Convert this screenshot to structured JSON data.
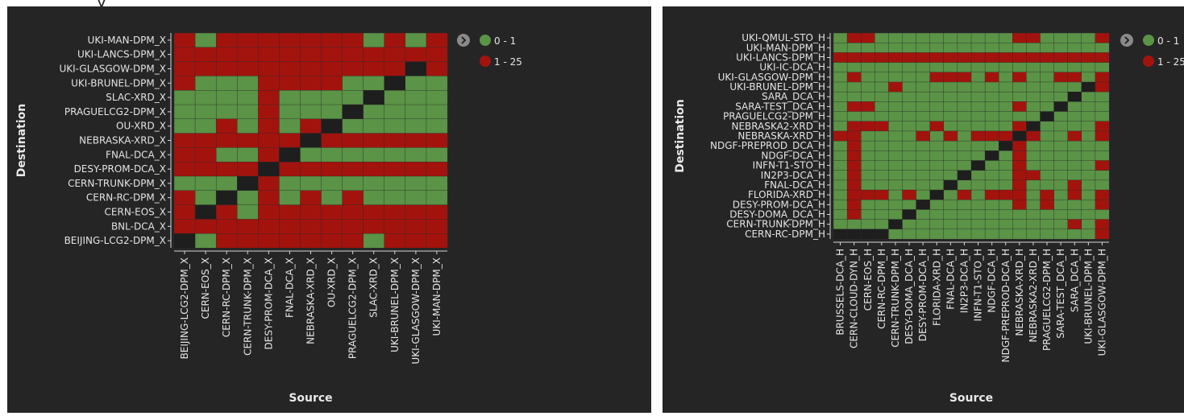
{
  "header_fragment": "y",
  "colors": {
    "panel_bg": "#252526",
    "low": "#5b9347",
    "high": "#a3130e",
    "diagonal": "#1e1e1e",
    "text": "#e3e3e3"
  },
  "chart_data": [
    {
      "type": "heatmap",
      "xlabel": "Source",
      "ylabel": "Destination",
      "legend": {
        "position": "top-right",
        "entries": [
          {
            "label": "0 - 1",
            "color": "#5b9347"
          },
          {
            "label": "1 - 25",
            "color": "#a3130e"
          }
        ]
      },
      "x_categories": [
        "BEIJING-LCG2-DPM_X",
        "CERN-EOS_X",
        "CERN-RC-DPM_X",
        "CERN-TRUNK-DPM_X",
        "DESY-PROM-DCA_X",
        "FNAL-DCA_X",
        "NEBRASKA-XRD_X",
        "OU-XRD_X",
        "PRAGUELCG2-DPM_X",
        "SLAC-XRD_X",
        "UKI-BRUNEL-DPM_X",
        "UKI-GLASGOW-DPM_X",
        "UKI-MAN-DPM_X"
      ],
      "y_categories": [
        "UKI-MAN-DPM_X",
        "UKI-LANCS-DPM_X",
        "UKI-GLASGOW-DPM_X",
        "UKI-BRUNEL-DPM_X",
        "SLAC-XRD_X",
        "PRAGUELCG2-DPM_X",
        "OU-XRD_X",
        "NEBRASKA-XRD_X",
        "FNAL-DCA_X",
        "DESY-PROM-DCA_X",
        "CERN-TRUNK-DPM_X",
        "CERN-RC-DPM_X",
        "CERN-EOS_X",
        "BNL-DCA_X",
        "BEIJING-LCG2-DPM_X"
      ],
      "cell_classes": [
        "1 = 0 - 1",
        "2 = 1 - 25",
        "0 = same site"
      ],
      "matrix": [
        [
          2,
          1,
          2,
          2,
          2,
          2,
          2,
          2,
          2,
          1,
          2,
          1,
          2
        ],
        [
          2,
          2,
          2,
          2,
          2,
          2,
          2,
          2,
          2,
          2,
          2,
          2,
          2
        ],
        [
          2,
          2,
          2,
          2,
          2,
          2,
          2,
          2,
          2,
          2,
          2,
          0,
          2
        ],
        [
          2,
          1,
          1,
          1,
          2,
          2,
          2,
          2,
          1,
          1,
          0,
          1,
          1
        ],
        [
          1,
          1,
          1,
          1,
          2,
          1,
          1,
          1,
          1,
          0,
          1,
          1,
          1
        ],
        [
          1,
          1,
          1,
          1,
          2,
          1,
          1,
          1,
          0,
          1,
          1,
          1,
          1
        ],
        [
          1,
          1,
          2,
          1,
          2,
          1,
          2,
          0,
          1,
          1,
          1,
          1,
          1
        ],
        [
          2,
          2,
          2,
          2,
          2,
          2,
          0,
          2,
          2,
          2,
          2,
          2,
          2
        ],
        [
          2,
          2,
          1,
          1,
          2,
          0,
          1,
          1,
          1,
          1,
          1,
          1,
          1
        ],
        [
          2,
          2,
          2,
          2,
          0,
          2,
          2,
          2,
          2,
          2,
          2,
          2,
          2
        ],
        [
          1,
          1,
          1,
          0,
          2,
          1,
          1,
          1,
          1,
          1,
          1,
          1,
          1
        ],
        [
          2,
          1,
          0,
          1,
          2,
          1,
          2,
          1,
          2,
          1,
          1,
          1,
          1
        ],
        [
          2,
          0,
          2,
          1,
          2,
          2,
          2,
          2,
          2,
          2,
          2,
          2,
          2
        ],
        [
          2,
          2,
          2,
          2,
          2,
          2,
          2,
          2,
          2,
          2,
          2,
          2,
          2
        ],
        [
          0,
          1,
          2,
          2,
          2,
          2,
          2,
          2,
          2,
          1,
          2,
          2,
          2
        ]
      ]
    },
    {
      "type": "heatmap",
      "xlabel": "Source",
      "ylabel": "Destination",
      "legend": {
        "position": "top-right",
        "entries": [
          {
            "label": "0 - 1",
            "color": "#5b9347"
          },
          {
            "label": "1 - 25",
            "color": "#a3130e"
          }
        ]
      },
      "x_categories": [
        "BRUSSELS-DCA_H",
        "CERN-CLOUD-DYN_H",
        "CERN-EOS_H",
        "CERN-RC-DPM_H",
        "CERN-TRUNK-DPM_H",
        "DESY-DOMA_DCA_H",
        "DESY-PROM-DCA_H",
        "FLORIDA-XRD_H",
        "FNAL-DCA_H",
        "IN2P3-DCA_H",
        "INFN-T1-STO_H",
        "NDGF-DCA_H",
        "NDGF-PREPROD-DCA_H",
        "NEBRASKA-XRD_H",
        "NEBRASKA2-XRD_H",
        "PRAGUELCG2-DPM_H",
        "SARA-TEST_DCA_H",
        "SARA_DCA_H",
        "UKI-BRUNEL-DPM_H",
        "UKI-GLASGOW-DPM_H"
      ],
      "y_categories": [
        "UKI-QMUL-STO_H",
        "UKI-MAN-DPM_H",
        "UKI-LANCS-DPM_H",
        "UKI-IC-DCA_H",
        "UKI-GLASGOW-DPM_H",
        "UKI-BRUNEL-DPM_H",
        "SARA_DCA_H",
        "SARA-TEST_DCA_H",
        "PRAGUELCG2-DPM_H",
        "NEBRASKA2-XRD_H",
        "NEBRASKA-XRD_H",
        "NDGF-PREPROD_DCA_H",
        "NDGF-DCA_H",
        "INFN-T1-STO_H",
        "IN2P3-DCA_H",
        "FNAL-DCA_H",
        "FLORIDA-XRD_H",
        "DESY-PROM-DCA_H",
        "DESY-DOMA_DCA_H",
        "CERN-TRUNK-DPM_H",
        "CERN-RC-DPM_H"
      ],
      "cell_classes": [
        "1 = 0 - 1",
        "2 = 1 - 25",
        "0 = same site"
      ],
      "matrix": [
        [
          1,
          2,
          2,
          1,
          1,
          1,
          1,
          1,
          1,
          1,
          1,
          1,
          1,
          2,
          2,
          1,
          1,
          1,
          1,
          2
        ],
        [
          1,
          1,
          1,
          1,
          1,
          1,
          1,
          1,
          1,
          1,
          1,
          1,
          1,
          1,
          1,
          1,
          1,
          1,
          1,
          1
        ],
        [
          2,
          2,
          2,
          2,
          2,
          2,
          2,
          2,
          2,
          2,
          2,
          2,
          2,
          2,
          2,
          2,
          2,
          2,
          2,
          2
        ],
        [
          1,
          1,
          1,
          1,
          1,
          1,
          1,
          1,
          1,
          1,
          1,
          1,
          1,
          1,
          1,
          1,
          1,
          1,
          1,
          1
        ],
        [
          1,
          2,
          1,
          1,
          1,
          1,
          1,
          2,
          2,
          2,
          1,
          2,
          1,
          2,
          1,
          1,
          2,
          2,
          1,
          2
        ],
        [
          1,
          1,
          1,
          1,
          2,
          1,
          1,
          1,
          1,
          1,
          1,
          1,
          1,
          1,
          1,
          1,
          1,
          1,
          0,
          2
        ],
        [
          1,
          1,
          1,
          1,
          1,
          1,
          1,
          1,
          1,
          1,
          1,
          1,
          1,
          1,
          1,
          1,
          1,
          0,
          1,
          1
        ],
        [
          1,
          2,
          2,
          1,
          1,
          1,
          1,
          1,
          1,
          1,
          1,
          1,
          1,
          2,
          1,
          1,
          0,
          1,
          1,
          1
        ],
        [
          1,
          1,
          1,
          1,
          1,
          1,
          1,
          1,
          1,
          1,
          1,
          1,
          1,
          1,
          1,
          0,
          1,
          1,
          1,
          1
        ],
        [
          1,
          2,
          2,
          2,
          1,
          1,
          1,
          2,
          1,
          1,
          1,
          1,
          1,
          2,
          0,
          1,
          1,
          1,
          1,
          2
        ],
        [
          2,
          2,
          1,
          1,
          1,
          1,
          2,
          1,
          2,
          1,
          2,
          2,
          2,
          0,
          2,
          1,
          1,
          2,
          1,
          2
        ],
        [
          1,
          2,
          1,
          1,
          1,
          1,
          1,
          1,
          1,
          1,
          1,
          1,
          0,
          2,
          1,
          1,
          1,
          1,
          1,
          1
        ],
        [
          1,
          2,
          1,
          1,
          1,
          1,
          1,
          1,
          1,
          1,
          1,
          0,
          1,
          2,
          1,
          1,
          1,
          1,
          1,
          1
        ],
        [
          1,
          2,
          1,
          1,
          1,
          1,
          1,
          1,
          1,
          1,
          0,
          1,
          1,
          2,
          1,
          1,
          1,
          1,
          1,
          2
        ],
        [
          1,
          2,
          1,
          1,
          1,
          1,
          1,
          1,
          1,
          0,
          1,
          1,
          1,
          2,
          2,
          1,
          1,
          1,
          1,
          1
        ],
        [
          1,
          2,
          1,
          1,
          1,
          1,
          1,
          1,
          0,
          1,
          1,
          1,
          1,
          2,
          1,
          1,
          1,
          2,
          1,
          1
        ],
        [
          1,
          2,
          2,
          2,
          1,
          2,
          1,
          0,
          1,
          2,
          1,
          2,
          2,
          2,
          1,
          2,
          1,
          2,
          1,
          2
        ],
        [
          1,
          2,
          1,
          1,
          1,
          1,
          0,
          1,
          1,
          1,
          1,
          1,
          1,
          2,
          1,
          2,
          1,
          1,
          1,
          2
        ],
        [
          1,
          2,
          1,
          1,
          1,
          0,
          1,
          1,
          1,
          1,
          1,
          1,
          1,
          1,
          1,
          1,
          1,
          1,
          1,
          1
        ],
        [
          1,
          1,
          1,
          1,
          0,
          1,
          1,
          1,
          1,
          1,
          1,
          1,
          1,
          1,
          1,
          1,
          1,
          2,
          1,
          2
        ],
        [
          0,
          0,
          0,
          0,
          1,
          1,
          1,
          1,
          1,
          1,
          1,
          1,
          1,
          1,
          1,
          1,
          1,
          1,
          1,
          2
        ]
      ]
    }
  ]
}
